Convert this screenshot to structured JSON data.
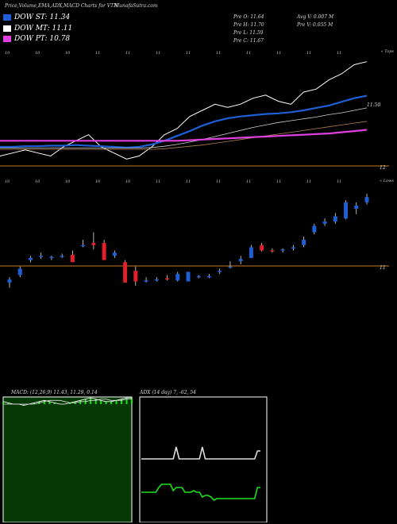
{
  "title": "Price,Volume,EMA,ADX,MACD Charts for VTN",
  "site": "MunafaSutra.com",
  "legend": [
    {
      "label": "DOW ST: 11.34",
      "color": "#1f5fd6"
    },
    {
      "label": "DOW MT: 11.11",
      "color": "#ffffff"
    },
    {
      "label": "DOW PT: 10.78",
      "color": "#e040e0"
    }
  ],
  "stats": {
    "open": "Pre  O: 11.64",
    "high": "Pre  H: 11.70",
    "low": "Pre  L: 11.59",
    "close": "Pre  C: 11.67",
    "avg_vol": "Avg V: 0.007 M",
    "pre_vol": "Pre  V: 0.055 M"
  },
  "colors": {
    "up": "#1f5fd6",
    "down": "#e0202a",
    "orange": "#c8781e",
    "green": "#1ee01e",
    "macd_bg": "#063806"
  },
  "chart_data": [
    {
      "type": "line",
      "panel": "ema",
      "corner_label": "« Tops",
      "top_tick_labels": [
        "10",
        "10",
        "10",
        "11",
        "11",
        "11",
        "11",
        "11",
        "11",
        "11",
        "11",
        "11"
      ],
      "level_labels": [
        "11.50",
        "12"
      ],
      "series": [
        {
          "values": [
            11.05,
            11.1,
            11.15,
            11.1,
            11.05,
            11.2,
            11.3,
            11.4,
            11.2,
            11.1,
            11.0,
            11.05,
            11.2,
            11.4,
            11.5,
            11.7,
            11.8,
            11.9,
            11.85,
            11.9,
            12.0,
            12.05,
            11.95,
            11.9,
            12.1,
            12.15,
            12.3,
            12.4,
            12.55,
            12.6
          ]
        },
        {
          "values": [
            11.2,
            11.2,
            11.21,
            11.21,
            11.22,
            11.22,
            11.23,
            11.22,
            11.21,
            11.2,
            11.19,
            11.2,
            11.24,
            11.3,
            11.38,
            11.46,
            11.55,
            11.62,
            11.67,
            11.7,
            11.72,
            11.74,
            11.75,
            11.77,
            11.8,
            11.84,
            11.88,
            11.94,
            12.0,
            12.04
          ]
        },
        {
          "values": [
            11.18,
            11.18,
            11.18,
            11.18,
            11.18,
            11.18,
            11.18,
            11.18,
            11.18,
            11.18,
            11.18,
            11.18,
            11.19,
            11.21,
            11.24,
            11.28,
            11.32,
            11.37,
            11.42,
            11.47,
            11.52,
            11.56,
            11.6,
            11.63,
            11.66,
            11.69,
            11.73,
            11.76,
            11.8,
            11.84
          ]
        },
        {
          "values": [
            11.16,
            11.16,
            11.16,
            11.16,
            11.16,
            11.16,
            11.16,
            11.16,
            11.16,
            11.16,
            11.16,
            11.16,
            11.16,
            11.17,
            11.19,
            11.21,
            11.23,
            11.26,
            11.29,
            11.32,
            11.35,
            11.38,
            11.41,
            11.44,
            11.47,
            11.5,
            11.53,
            11.56,
            11.59,
            11.62
          ]
        },
        {
          "values": [
            11.3,
            11.3,
            11.3,
            11.3,
            11.3,
            11.3,
            11.3,
            11.3,
            11.3,
            11.3,
            11.3,
            11.3,
            11.3,
            11.3,
            11.3,
            11.31,
            11.32,
            11.33,
            11.34,
            11.35,
            11.36,
            11.37,
            11.38,
            11.39,
            11.4,
            11.41,
            11.42,
            11.44,
            11.46,
            11.48
          ]
        }
      ]
    },
    {
      "type": "candlestick",
      "panel": "price",
      "corner_label": "« Lows",
      "top_tick_labels": [
        "10",
        "10",
        "10",
        "10",
        "10",
        "11",
        "11",
        "11",
        "11",
        "11",
        "11",
        "11"
      ],
      "level_labels": [
        "11"
      ],
      "candles": [
        {
          "o": 10.95,
          "h": 11.0,
          "l": 10.9,
          "c": 10.98
        },
        {
          "o": 11.02,
          "h": 11.1,
          "l": 11.0,
          "c": 11.08
        },
        {
          "o": 11.16,
          "h": 11.2,
          "l": 11.14,
          "c": 11.18
        },
        {
          "o": 11.19,
          "h": 11.23,
          "l": 11.17,
          "c": 11.2
        },
        {
          "o": 11.18,
          "h": 11.2,
          "l": 11.16,
          "c": 11.19
        },
        {
          "o": 11.19,
          "h": 11.22,
          "l": 11.18,
          "c": 11.2
        },
        {
          "o": 11.21,
          "h": 11.25,
          "l": 11.14,
          "c": 11.14
        },
        {
          "o": 11.3,
          "h": 11.35,
          "l": 11.28,
          "c": 11.3
        },
        {
          "o": 11.32,
          "h": 11.42,
          "l": 11.26,
          "c": 11.3
        },
        {
          "o": 11.32,
          "h": 11.35,
          "l": 11.16,
          "c": 11.16
        },
        {
          "o": 11.2,
          "h": 11.25,
          "l": 11.18,
          "c": 11.23
        },
        {
          "o": 11.14,
          "h": 11.16,
          "l": 10.95,
          "c": 10.95
        },
        {
          "o": 11.06,
          "h": 11.1,
          "l": 10.92,
          "c": 10.96
        },
        {
          "o": 10.97,
          "h": 11.0,
          "l": 10.95,
          "c": 10.97
        },
        {
          "o": 10.98,
          "h": 11.0,
          "l": 10.96,
          "c": 10.98
        },
        {
          "o": 10.99,
          "h": 11.02,
          "l": 10.97,
          "c": 10.98
        },
        {
          "o": 10.97,
          "h": 11.05,
          "l": 10.96,
          "c": 11.03
        },
        {
          "o": 10.96,
          "h": 11.05,
          "l": 10.96,
          "c": 11.05
        },
        {
          "o": 11.0,
          "h": 11.02,
          "l": 10.99,
          "c": 11.01
        },
        {
          "o": 11.0,
          "h": 11.03,
          "l": 10.99,
          "c": 11.01
        },
        {
          "o": 11.05,
          "h": 11.08,
          "l": 11.03,
          "c": 11.06
        },
        {
          "o": 11.1,
          "h": 11.15,
          "l": 11.08,
          "c": 11.1
        },
        {
          "o": 11.15,
          "h": 11.2,
          "l": 11.12,
          "c": 11.17
        },
        {
          "o": 11.18,
          "h": 11.3,
          "l": 11.18,
          "c": 11.28
        },
        {
          "o": 11.3,
          "h": 11.32,
          "l": 11.24,
          "c": 11.25
        },
        {
          "o": 11.25,
          "h": 11.27,
          "l": 11.23,
          "c": 11.24
        },
        {
          "o": 11.25,
          "h": 11.27,
          "l": 11.23,
          "c": 11.26
        },
        {
          "o": 11.27,
          "h": 11.3,
          "l": 11.25,
          "c": 11.28
        },
        {
          "o": 11.3,
          "h": 11.38,
          "l": 11.28,
          "c": 11.35
        },
        {
          "o": 11.42,
          "h": 11.5,
          "l": 11.4,
          "c": 11.48
        },
        {
          "o": 11.5,
          "h": 11.55,
          "l": 11.48,
          "c": 11.52
        },
        {
          "o": 11.52,
          "h": 11.6,
          "l": 11.5,
          "c": 11.57
        },
        {
          "o": 11.55,
          "h": 11.72,
          "l": 11.54,
          "c": 11.7
        },
        {
          "o": 11.64,
          "h": 11.7,
          "l": 11.59,
          "c": 11.67
        },
        {
          "o": 11.7,
          "h": 11.78,
          "l": 11.68,
          "c": 11.75
        }
      ]
    },
    {
      "type": "line",
      "panel": "macd",
      "title": "MACD: (12,26,9) 11.43, 11.29, 0.14",
      "series": [
        {
          "values": [
            0.02,
            0.01,
            0.0,
            0.0,
            -0.01,
            0.0,
            0.01,
            0.02,
            0.03,
            0.02,
            0.01,
            0.0,
            0.0,
            0.01,
            0.02,
            0.03,
            0.04,
            0.05,
            0.04,
            0.03,
            0.02,
            0.02,
            0.03,
            0.04,
            0.05,
            0.05
          ]
        },
        {
          "values": [
            0.0,
            0.0,
            0.0,
            0.0,
            0.0,
            0.0,
            0.0,
            0.01,
            0.02,
            0.03,
            0.03,
            0.03,
            0.02,
            0.01,
            0.01,
            0.02,
            0.02,
            0.03,
            0.03,
            0.04,
            0.04,
            0.03,
            0.03,
            0.03,
            0.04,
            0.04
          ]
        }
      ],
      "ylim": [
        -0.5,
        0.5
      ]
    },
    {
      "type": "line",
      "panel": "adx",
      "title": "ADX (14 day) 7, -62, 54",
      "series": [
        {
          "values": [
            0,
            0,
            0,
            0,
            0,
            0,
            0,
            0,
            0,
            0,
            0,
            0,
            15,
            0,
            0,
            0,
            0,
            0,
            0,
            0,
            0,
            15,
            0,
            0,
            0,
            0,
            0,
            0,
            0,
            0,
            0,
            0,
            0,
            0,
            0,
            0,
            0,
            0,
            0,
            0,
            10,
            10
          ]
        },
        {
          "values": [
            -10,
            -10,
            -10,
            -10,
            -10,
            -10,
            -4,
            0,
            0,
            0,
            0,
            -8,
            -4,
            -4,
            -4,
            -10,
            -10,
            -10,
            -8,
            -10,
            -10,
            -16,
            -14,
            -14,
            -16,
            -20,
            -18,
            -18,
            -18,
            -18,
            -18,
            -18,
            -18,
            -18,
            -18,
            -18,
            -18,
            -18,
            -18,
            -18,
            -4,
            -4
          ]
        }
      ],
      "ylim": [
        -60,
        60
      ]
    }
  ]
}
